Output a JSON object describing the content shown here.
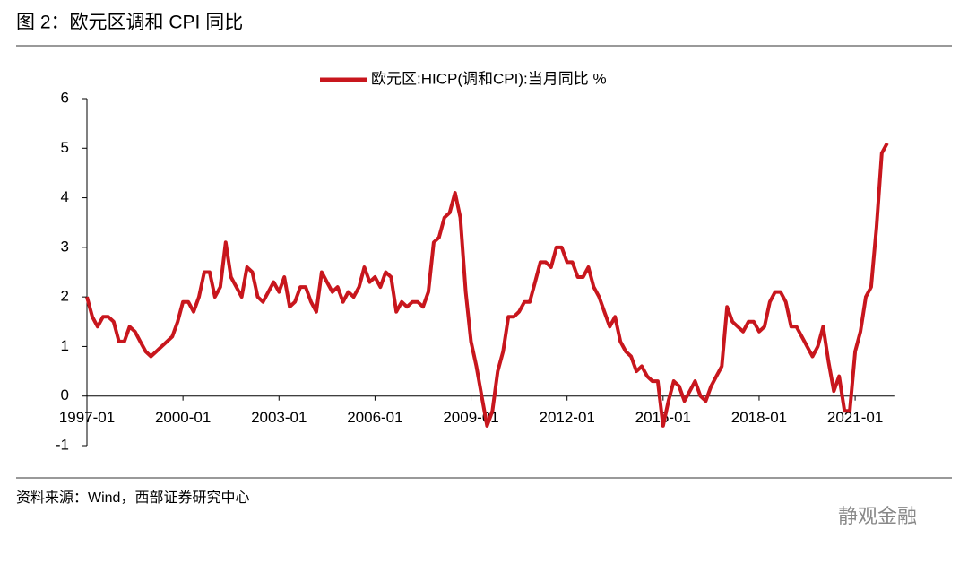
{
  "chart_data": {
    "type": "line",
    "title": "图 2：欧元区调和 CPI 同比",
    "source": "资料来源：Wind，西部证券研究中心",
    "watermark": "静观金融",
    "x": [
      "1997-01",
      "1997-03",
      "1997-05",
      "1997-07",
      "1997-09",
      "1997-11",
      "1998-01",
      "1998-03",
      "1998-05",
      "1998-07",
      "1998-09",
      "1998-11",
      "1999-01",
      "1999-03",
      "1999-05",
      "1999-07",
      "1999-09",
      "1999-11",
      "2000-01",
      "2000-03",
      "2000-05",
      "2000-07",
      "2000-09",
      "2000-11",
      "2001-01",
      "2001-03",
      "2001-05",
      "2001-07",
      "2001-09",
      "2001-11",
      "2002-01",
      "2002-03",
      "2002-05",
      "2002-07",
      "2002-09",
      "2002-11",
      "2003-01",
      "2003-03",
      "2003-05",
      "2003-07",
      "2003-09",
      "2003-11",
      "2004-01",
      "2004-03",
      "2004-05",
      "2004-07",
      "2004-09",
      "2004-11",
      "2005-01",
      "2005-03",
      "2005-05",
      "2005-07",
      "2005-09",
      "2005-11",
      "2006-01",
      "2006-03",
      "2006-05",
      "2006-07",
      "2006-09",
      "2006-11",
      "2007-01",
      "2007-03",
      "2007-05",
      "2007-07",
      "2007-09",
      "2007-11",
      "2008-01",
      "2008-03",
      "2008-05",
      "2008-07",
      "2008-09",
      "2008-11",
      "2009-01",
      "2009-03",
      "2009-05",
      "2009-07",
      "2009-09",
      "2009-11",
      "2010-01",
      "2010-03",
      "2010-05",
      "2010-07",
      "2010-09",
      "2010-11",
      "2011-01",
      "2011-03",
      "2011-05",
      "2011-07",
      "2011-09",
      "2011-11",
      "2012-01",
      "2012-03",
      "2012-05",
      "2012-07",
      "2012-09",
      "2012-11",
      "2013-01",
      "2013-03",
      "2013-05",
      "2013-07",
      "2013-09",
      "2013-11",
      "2014-01",
      "2014-03",
      "2014-05",
      "2014-07",
      "2014-09",
      "2014-11",
      "2015-01",
      "2015-03",
      "2015-05",
      "2015-07",
      "2015-09",
      "2015-11",
      "2016-01",
      "2016-03",
      "2016-05",
      "2016-07",
      "2016-09",
      "2016-11",
      "2017-01",
      "2017-03",
      "2017-05",
      "2017-07",
      "2017-09",
      "2017-11",
      "2018-01",
      "2018-03",
      "2018-05",
      "2018-07",
      "2018-09",
      "2018-11",
      "2019-01",
      "2019-03",
      "2019-05",
      "2019-07",
      "2019-09",
      "2019-11",
      "2020-01",
      "2020-03",
      "2020-05",
      "2020-07",
      "2020-09",
      "2020-11",
      "2021-01",
      "2021-03",
      "2021-05",
      "2021-07",
      "2021-09",
      "2021-11",
      "2022-01"
    ],
    "series": [
      {
        "name": "欧元区:HICP(调和CPI):当月同比 %",
        "color": "#c8161d",
        "values": [
          2.0,
          1.6,
          1.4,
          1.6,
          1.6,
          1.5,
          1.1,
          1.1,
          1.4,
          1.3,
          1.1,
          0.9,
          0.8,
          0.9,
          1.0,
          1.1,
          1.2,
          1.5,
          1.9,
          1.9,
          1.7,
          2.0,
          2.5,
          2.5,
          2.0,
          2.2,
          3.1,
          2.4,
          2.2,
          2.0,
          2.6,
          2.5,
          2.0,
          1.9,
          2.1,
          2.3,
          2.1,
          2.4,
          1.8,
          1.9,
          2.2,
          2.2,
          1.9,
          1.7,
          2.5,
          2.3,
          2.1,
          2.2,
          1.9,
          2.1,
          2.0,
          2.2,
          2.6,
          2.3,
          2.4,
          2.2,
          2.5,
          2.4,
          1.7,
          1.9,
          1.8,
          1.9,
          1.9,
          1.8,
          2.1,
          3.1,
          3.2,
          3.6,
          3.7,
          4.1,
          3.6,
          2.1,
          1.1,
          0.6,
          0.0,
          -0.6,
          -0.3,
          0.5,
          0.9,
          1.6,
          1.6,
          1.7,
          1.9,
          1.9,
          2.3,
          2.7,
          2.7,
          2.6,
          3.0,
          3.0,
          2.7,
          2.7,
          2.4,
          2.4,
          2.6,
          2.2,
          2.0,
          1.7,
          1.4,
          1.6,
          1.1,
          0.9,
          0.8,
          0.5,
          0.6,
          0.4,
          0.3,
          0.3,
          -0.6,
          -0.1,
          0.3,
          0.2,
          -0.1,
          0.1,
          0.3,
          0.0,
          -0.1,
          0.2,
          0.4,
          0.6,
          1.8,
          1.5,
          1.4,
          1.3,
          1.5,
          1.5,
          1.3,
          1.4,
          1.9,
          2.1,
          2.1,
          1.9,
          1.4,
          1.4,
          1.2,
          1.0,
          0.8,
          1.0,
          1.4,
          0.7,
          0.1,
          0.4,
          -0.3,
          -0.3,
          0.9,
          1.3,
          2.0,
          2.2,
          3.4,
          4.9,
          5.1
        ]
      }
    ],
    "xticks": [
      "1997-01",
      "2000-01",
      "2003-01",
      "2006-01",
      "2009-01",
      "2012-01",
      "2015-01",
      "2018-01",
      "2021-01"
    ],
    "ylim": [
      -1,
      6
    ],
    "yticks": [
      -1,
      0,
      1,
      2,
      3,
      4,
      5,
      6
    ]
  }
}
